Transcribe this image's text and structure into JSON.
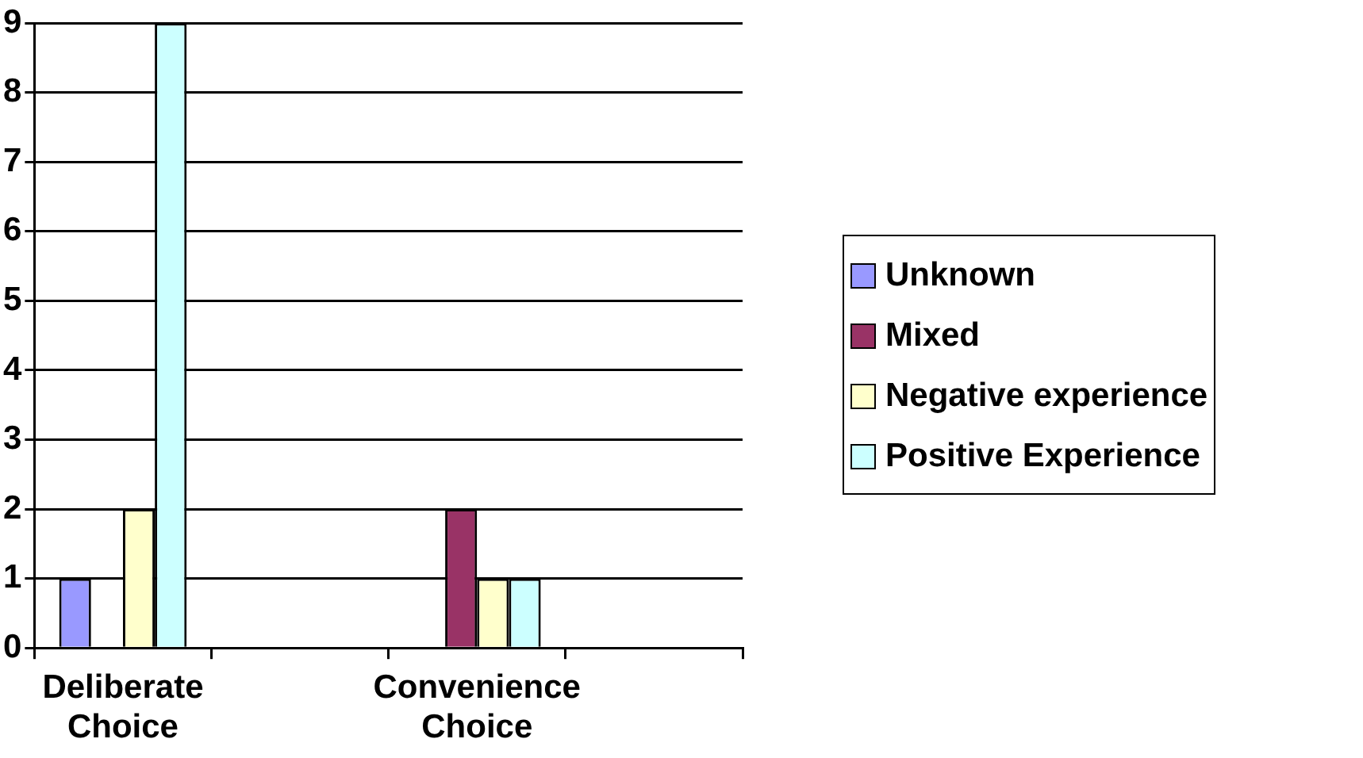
{
  "chart_data": {
    "type": "bar",
    "categories": [
      "Deliberate Choice",
      null,
      "Convenience Choice",
      null
    ],
    "series": [
      {
        "name": "Unknown",
        "color": "#9999ff",
        "values": [
          1,
          null,
          0,
          null
        ]
      },
      {
        "name": "Mixed",
        "color": "#993366",
        "values": [
          0,
          null,
          2,
          null
        ]
      },
      {
        "name": "Negative experience",
        "color": "#ffffcc",
        "values": [
          2,
          null,
          1,
          null
        ]
      },
      {
        "name": "Positive Experience",
        "color": "#ccffff",
        "values": [
          9,
          null,
          1,
          null
        ]
      }
    ],
    "ylim": [
      0,
      9
    ],
    "yticks": [
      0,
      1,
      2,
      3,
      4,
      5,
      6,
      7,
      8,
      9
    ],
    "grid": "y",
    "legend": "right"
  }
}
